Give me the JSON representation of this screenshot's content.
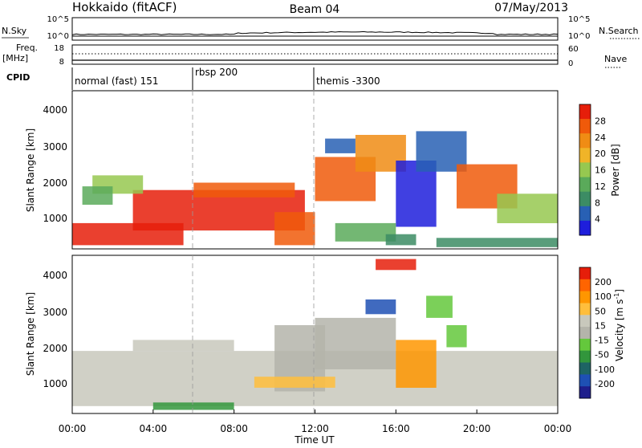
{
  "header": {
    "station": "Hokkaido (fitACF)",
    "beam": "Beam 04",
    "date": "07/May/2013"
  },
  "colors": {
    "power": [
      "#1e1edc",
      "#2860b4",
      "#3c8c64",
      "#5aaa5a",
      "#96c850",
      "#f0b428",
      "#f08c14",
      "#f05a0a",
      "#e61e0a"
    ],
    "velocity": [
      "#e61e0a",
      "#ff6400",
      "#ff9600",
      "#ffbe3c",
      "#c8c8bc",
      "#b4b4aa",
      "#64c83c",
      "#32963c",
      "#1e6464",
      "#1e50b4",
      "#1e1e8c"
    ]
  },
  "chart_data": [
    {
      "panel": "noise",
      "type": "line",
      "left_label": "N.Sky",
      "right_label": "N.Search",
      "yticks_left": [
        "10^5",
        "10^0"
      ],
      "yticks_right": [
        "10^5",
        "10^0"
      ]
    },
    {
      "panel": "frequency",
      "type": "line",
      "left_label": "Freq.",
      "left_unit": "[MHz]",
      "right_label": "Nave",
      "yticks_left": [
        "18",
        "8"
      ],
      "yticks_right": [
        "60",
        "0"
      ]
    },
    {
      "panel": "cpid",
      "type": "table",
      "label": "CPID",
      "segments": [
        {
          "start": 0.0,
          "end": 6.0,
          "text": "normal (fast) 151"
        },
        {
          "start": 6.0,
          "end": 12.0,
          "text": "rbsp 200"
        },
        {
          "start": 12.0,
          "end": 24.0,
          "text": "themis -3300"
        }
      ]
    },
    {
      "panel": "power",
      "type": "heatmap",
      "ylabel": "Slant Range [km]",
      "yticks": [
        "1000",
        "2000",
        "3000",
        "4000"
      ],
      "ylim": [
        200,
        4500
      ],
      "colorbar_label": "Power [dB]",
      "colorbar_ticks": [
        "4",
        "8",
        "12",
        "16",
        "20",
        "24",
        "28"
      ],
      "clim": [
        0,
        32
      ]
    },
    {
      "panel": "velocity",
      "type": "heatmap",
      "ylabel": "Slant Range [km]",
      "yticks": [
        "1000",
        "2000",
        "3000",
        "4000"
      ],
      "ylim": [
        200,
        4500
      ],
      "xlabel": "Time UT",
      "xticks": [
        "00:00",
        "04:00",
        "08:00",
        "12:00",
        "16:00",
        "20:00",
        "00:00"
      ],
      "xlim_hours": [
        0,
        24
      ],
      "colorbar_label": "Velocity [m s",
      "colorbar_label_sup": "-1",
      "colorbar_label_end": "]",
      "colorbar_ticks": [
        "200",
        "100",
        "50",
        "15",
        "-15",
        "-50",
        "-100",
        "-200"
      ]
    }
  ]
}
